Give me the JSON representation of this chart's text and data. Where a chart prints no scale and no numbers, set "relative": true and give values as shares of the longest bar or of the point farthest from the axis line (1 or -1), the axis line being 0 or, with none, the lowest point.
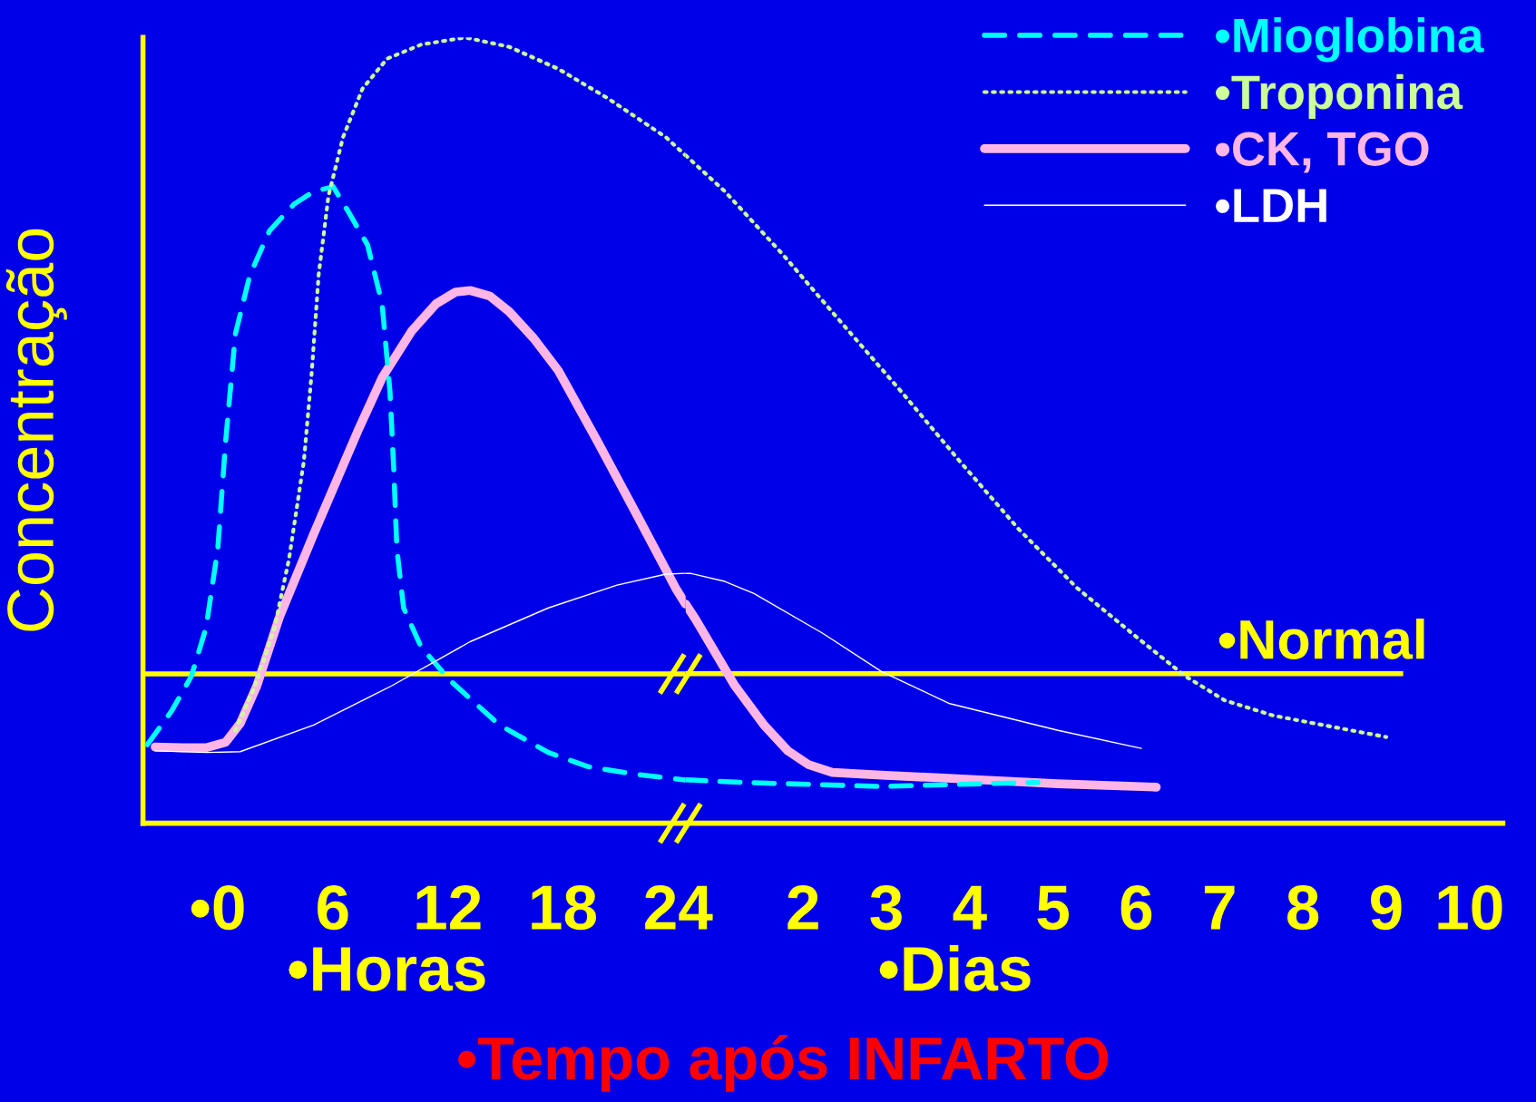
{
  "chart_data": [
    {
      "type": "line",
      "relative": true,
      "ylabel": "Concentração",
      "xlabel": "•Horas",
      "xlim": [
        -3.9,
        24.4
      ],
      "xticks": [
        {
          "value": 0,
          "label": "•0"
        },
        6,
        12,
        18,
        24
      ],
      "ref_lines": [
        {
          "axis": "y",
          "value": 0.19,
          "color": "#ffff00"
        }
      ],
      "grid": false,
      "marker": "none",
      "series": [
        {
          "color": "#00ffff",
          "line_style": "dashed",
          "x": [
            -3.67,
            -2.4,
            -1.38,
            -0.61,
            0,
            0.41,
            0.92,
            1.68,
            2.7,
            3.98,
            5.0,
            6.02,
            6.79,
            7.81,
            8.57,
            8.98,
            9.18,
            9.34,
            9.69,
            10.61,
            12.14,
            14.69,
            17.24,
            19.29,
            21.84,
            24.39
          ],
          "values": [
            0.1,
            0.143,
            0.187,
            0.249,
            0.349,
            0.486,
            0.623,
            0.698,
            0.754,
            0.788,
            0.804,
            0.81,
            0.779,
            0.736,
            0.661,
            0.549,
            0.449,
            0.349,
            0.274,
            0.224,
            0.181,
            0.125,
            0.09,
            0.072,
            0.062,
            0.055
          ]
        },
        {
          "color": "#ccff99",
          "line_style": "dotted",
          "x": [
            0.92,
            1.94,
            2.96,
            3.72,
            4.49,
            4.9,
            5.26,
            5.77,
            6.53,
            7.55,
            8.83,
            10.61,
            12.91,
            15.2,
            17.76,
            20.31,
            23.37,
            24.39
          ],
          "values": [
            0.118,
            0.175,
            0.249,
            0.337,
            0.461,
            0.574,
            0.698,
            0.798,
            0.873,
            0.935,
            0.973,
            0.991,
            1.0,
            0.988,
            0.96,
            0.923,
            0.873,
            0.85
          ]
        },
        {
          "color": "#ffb6e6",
          "line_style": "solid",
          "x": [
            -3.27,
            -1.89,
            -0.61,
            0.41,
            1.17,
            2.04,
            3.21,
            5.0,
            7.3,
            8.57,
            10.1,
            11.38,
            12.4,
            13.16,
            14.18,
            15.2,
            16.48,
            17.76,
            19.8,
            21.84,
            23.88,
            24.39
          ],
          "values": [
            0.097,
            0.096,
            0.096,
            0.103,
            0.127,
            0.175,
            0.262,
            0.368,
            0.499,
            0.567,
            0.626,
            0.661,
            0.676,
            0.678,
            0.671,
            0.651,
            0.617,
            0.576,
            0.486,
            0.393,
            0.299,
            0.279
          ]
        },
        {
          "color": "#ffffff",
          "line_style": "solid",
          "x": [
            -3.27,
            -0.61,
            1.17,
            5.0,
            9.08,
            13.16,
            17.24,
            20.82,
            23.37,
            24.39
          ],
          "values": [
            0.092,
            0.09,
            0.091,
            0.125,
            0.175,
            0.231,
            0.274,
            0.303,
            0.317,
            0.318
          ]
        }
      ]
    },
    {
      "type": "line",
      "relative": true,
      "xlabel": "•Dias",
      "annotations": [
        "•Tempo após INFARTO"
      ],
      "xlim": [
        0.59,
        10.4
      ],
      "xticks": [
        2,
        3,
        4,
        5,
        6,
        7,
        8,
        9,
        10
      ],
      "ref_lines": [
        {
          "axis": "y",
          "value": 0.224,
          "label": "•Normal",
          "color": "#ffff00"
        }
      ],
      "legend": "top right",
      "grid": false,
      "marker": "none",
      "series": [
        {
          "name": "•Mioglobina",
          "color": "#00ffff",
          "line_style": "dashed",
          "x": [
            0.59,
            1.29,
            2.12,
            2.94,
            4.12,
            4.82
          ],
          "values": [
            0.065,
            0.061,
            0.058,
            0.055,
            0.059,
            0.061
          ]
        },
        {
          "name": "•Troponina",
          "color": "#ccff99",
          "line_style": "dotted",
          "x": [
            0.59,
            1.06,
            1.76,
            2.47,
            3.18,
            3.88,
            4.59,
            5.29,
            6.0,
            6.59,
            7.06,
            7.65,
            8.24,
            9.0
          ],
          "values": [
            1.0,
            0.946,
            0.851,
            0.748,
            0.646,
            0.542,
            0.44,
            0.352,
            0.279,
            0.22,
            0.184,
            0.161,
            0.147,
            0.129
          ]
        },
        {
          "name": "•CK, TGO",
          "color": "#ffb6e6",
          "line_style": "solid",
          "x": [
            0.59,
            0.71,
            1.18,
            1.53,
            1.82,
            2.06,
            2.35,
            2.94,
            4.12,
            5.06,
            6.24
          ],
          "values": [
            0.328,
            0.305,
            0.206,
            0.147,
            0.108,
            0.088,
            0.076,
            0.072,
            0.065,
            0.059,
            0.054
          ]
        },
        {
          "name": "•LDH",
          "color": "#ffffff",
          "line_style": "solid",
          "x": [
            0.59,
            0.65,
            1.06,
            1.41,
            2.24,
            2.94,
            3.76,
            5.06,
            6.06
          ],
          "values": [
            0.374,
            0.374,
            0.362,
            0.344,
            0.284,
            0.227,
            0.179,
            0.139,
            0.112
          ]
        }
      ]
    }
  ]
}
